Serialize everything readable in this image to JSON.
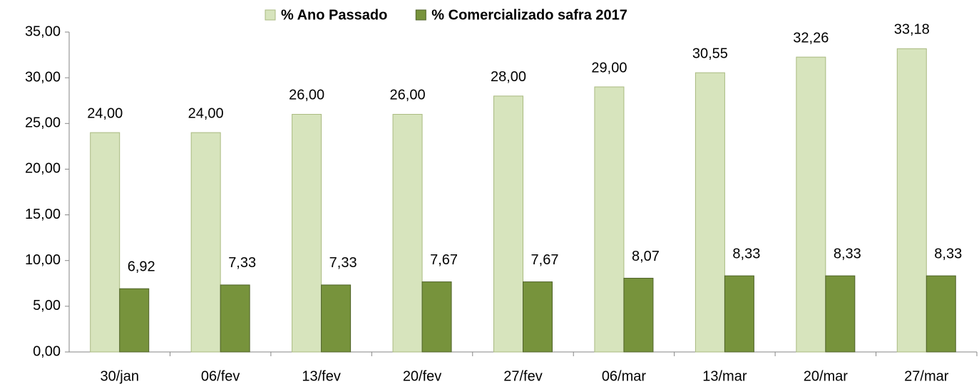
{
  "chart_data": {
    "type": "bar",
    "categories": [
      "30/jan",
      "06/fev",
      "13/fev",
      "20/fev",
      "27/fev",
      "06/mar",
      "13/mar",
      "20/mar",
      "27/mar"
    ],
    "series": [
      {
        "name": "% Ano Passado",
        "color": "#d7e4bd",
        "values": [
          24.0,
          24.0,
          26.0,
          26.0,
          28.0,
          29.0,
          30.55,
          32.26,
          33.18
        ],
        "value_labels": [
          "24,00",
          "24,00",
          "26,00",
          "26,00",
          "28,00",
          "29,00",
          "30,55",
          "32,26",
          "33,18"
        ]
      },
      {
        "name": "% Comercializado safra 2017",
        "color": "#77933c",
        "values": [
          6.92,
          7.33,
          7.33,
          7.67,
          7.67,
          8.07,
          8.33,
          8.33,
          8.33
        ],
        "value_labels": [
          "6,92",
          "7,33",
          "7,33",
          "7,67",
          "7,67",
          "8,07",
          "8,33",
          "8,33",
          "8,33"
        ]
      }
    ],
    "ylim": [
      0,
      35
    ],
    "yticks": [
      {
        "value": 0,
        "label": "0,00"
      },
      {
        "value": 5,
        "label": "5,00"
      },
      {
        "value": 10,
        "label": "10,00"
      },
      {
        "value": 15,
        "label": "15,00"
      },
      {
        "value": 20,
        "label": "20,00"
      },
      {
        "value": 25,
        "label": "25,00"
      },
      {
        "value": 30,
        "label": "30,00"
      },
      {
        "value": 35,
        "label": "35,00"
      }
    ],
    "legend": "top"
  }
}
